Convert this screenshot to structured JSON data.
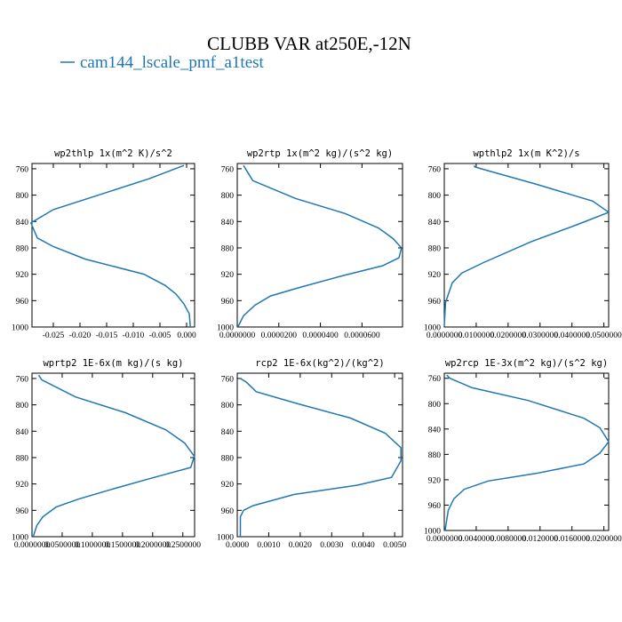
{
  "title": "CLUBB VAR at250E,-12N",
  "legend": {
    "label": "cam144_lscale_pmf_a1test",
    "color": "#1f77b4"
  },
  "chart_data": [
    {
      "type": "line",
      "title": "wp2thlp  1x(m^2 K)/s^2",
      "xlim": [
        -0.029,
        0.0015
      ],
      "ylim": [
        1000,
        752
      ],
      "xticks": [
        -0.025,
        -0.02,
        -0.015,
        -0.01,
        -0.005,
        0.0
      ],
      "xtick_labels": [
        "-0.025",
        "-0.020",
        "-0.015",
        "-0.010",
        "-0.005",
        "0.000"
      ],
      "yticks": [
        760,
        800,
        840,
        880,
        920,
        960,
        1000
      ],
      "ytick_labels": [
        "760",
        "800",
        "840",
        "880",
        "920",
        "960",
        "1000"
      ],
      "series": [
        {
          "x": [
            -0.0005,
            -0.007,
            -0.025,
            -0.0292,
            -0.028,
            -0.025,
            -0.019,
            -0.008,
            -0.004,
            -0.002,
            -0.0005,
            0.0005,
            0.0007
          ],
          "y": [
            755,
            775,
            822,
            842,
            865,
            878,
            897,
            920,
            937,
            950,
            965,
            980,
            1000
          ]
        }
      ]
    },
    {
      "type": "line",
      "title": "wp2rtp  1x(m^2 kg)/(s^2 kg)",
      "xlim": [
        0,
        7.95e-05
      ],
      "ylim": [
        1000,
        752
      ],
      "xticks": [
        0,
        2e-05,
        4e-05,
        6e-05
      ],
      "xtick_labels": [
        "0.0000000",
        "0.0000200",
        "0.0000400",
        "0.0000600"
      ],
      "yticks": [
        760,
        800,
        840,
        880,
        920,
        960,
        1000
      ],
      "ytick_labels": [
        "760",
        "800",
        "840",
        "880",
        "920",
        "960",
        "1000"
      ],
      "series": [
        {
          "x": [
            3e-06,
            7.5e-06,
            2.8e-05,
            5.2e-05,
            6.8e-05,
            7.5e-05,
            7.9e-05,
            7.78e-05,
            7e-05,
            5.1e-05,
            3e-05,
            1.6e-05,
            8.5e-06,
            3e-06,
            3e-07
          ],
          "y": [
            755,
            778,
            805,
            828,
            850,
            866,
            880,
            895,
            907,
            922,
            940,
            953,
            967,
            983,
            1000
          ]
        }
      ]
    },
    {
      "type": "line",
      "title": "wpthlp2  1x(m K^2)/s",
      "xlim": [
        0,
        0.0515
      ],
      "ylim": [
        1000,
        752
      ],
      "xticks": [
        0,
        0.01,
        0.02,
        0.03,
        0.04,
        0.05
      ],
      "xtick_labels": [
        "0.0000000",
        "0.0100000",
        "0.0200000",
        "0.0300000",
        "0.0400000",
        "0.0500000"
      ],
      "yticks": [
        760,
        800,
        840,
        880,
        920,
        960,
        1000
      ],
      "ytick_labels": [
        "760",
        "800",
        "840",
        "880",
        "920",
        "960",
        "1000"
      ],
      "series": [
        {
          "x": [
            0.0095,
            0.0095,
            0.0115,
            0.0285,
            0.0465,
            0.0515,
            0.0415,
            0.027,
            0.012,
            0.0055,
            0.0025,
            0.0015,
            0.0004,
            0.0
          ],
          "y": [
            755,
            757,
            760,
            783,
            809,
            826,
            845,
            871,
            903,
            918,
            933,
            947,
            963,
            998
          ]
        }
      ]
    },
    {
      "type": "line",
      "title": "wprtp2  1E-6x(m kg)/(s kg)",
      "xlim": [
        0,
        0.2695
      ],
      "ylim": [
        1000,
        752
      ],
      "xticks": [
        0,
        0.05,
        0.1,
        0.15,
        0.2,
        0.25
      ],
      "xtick_labels": [
        "0.0000000",
        "0.0500000",
        "0.1000000",
        "0.1500000",
        "0.2000000",
        "0.2500000"
      ],
      "yticks": [
        760,
        800,
        840,
        880,
        920,
        960,
        1000
      ],
      "ytick_labels": [
        "760",
        "800",
        "840",
        "880",
        "920",
        "960",
        "1000"
      ],
      "series": [
        {
          "x": [
            0.011,
            0.016,
            0.072,
            0.155,
            0.222,
            0.253,
            0.269,
            0.263,
            0.203,
            0.14,
            0.077,
            0.04,
            0.018,
            0.008,
            0.002
          ],
          "y": [
            755,
            762,
            788,
            812,
            838,
            858,
            878,
            895,
            910,
            926,
            943,
            955,
            970,
            983,
            1000
          ]
        }
      ]
    },
    {
      "type": "line",
      "title": "rcp2  1E-6x(kg^2)/(kg^2)",
      "xlim": [
        0,
        0.00525
      ],
      "ylim": [
        1000,
        752
      ],
      "xticks": [
        0,
        0.001,
        0.002,
        0.003,
        0.004,
        0.005
      ],
      "xtick_labels": [
        "0.0000",
        "0.0010",
        "0.0020",
        "0.0030",
        "0.0040",
        "0.0050"
      ],
      "yticks": [
        760,
        800,
        840,
        880,
        920,
        960,
        1000
      ],
      "ytick_labels": [
        "760",
        "800",
        "840",
        "880",
        "920",
        "960",
        "1000"
      ],
      "series": [
        {
          "x": [
            0.0001,
            0.0003,
            0.0006,
            0.0019,
            0.0036,
            0.0047,
            0.0052,
            0.0052,
            0.0049,
            0.0038,
            0.0018,
            0.0005,
            0.0002,
            0.0001,
            0.0001
          ],
          "y": [
            760,
            766,
            780,
            798,
            820,
            843,
            865,
            885,
            910,
            922,
            936,
            953,
            960,
            970,
            1000
          ]
        }
      ]
    },
    {
      "type": "line",
      "title": "wp2rcp  1E-3x(m^2 kg)/(s^2 kg)",
      "xlim": [
        0,
        0.0206
      ],
      "ylim": [
        1000,
        752
      ],
      "xticks": [
        0,
        0.004,
        0.008,
        0.012,
        0.016,
        0.02
      ],
      "xtick_labels": [
        "0.0000000",
        "0.0040000",
        "0.0080000",
        "0.0120000",
        "0.0160000",
        "0.0200000"
      ],
      "yticks": [
        760,
        800,
        840,
        880,
        920,
        960,
        1000
      ],
      "ytick_labels": [
        "760",
        "800",
        "840",
        "880",
        "920",
        "960",
        "1000"
      ],
      "series": [
        {
          "x": [
            0.0003,
            0.0007,
            0.0035,
            0.0105,
            0.0175,
            0.0195,
            0.0206,
            0.0195,
            0.0175,
            0.0115,
            0.0055,
            0.0025,
            0.0012,
            0.0005,
            0.0001
          ],
          "y": [
            755,
            760,
            775,
            795,
            823,
            838,
            860,
            878,
            895,
            910,
            922,
            935,
            950,
            968,
            1000
          ]
        }
      ]
    }
  ]
}
